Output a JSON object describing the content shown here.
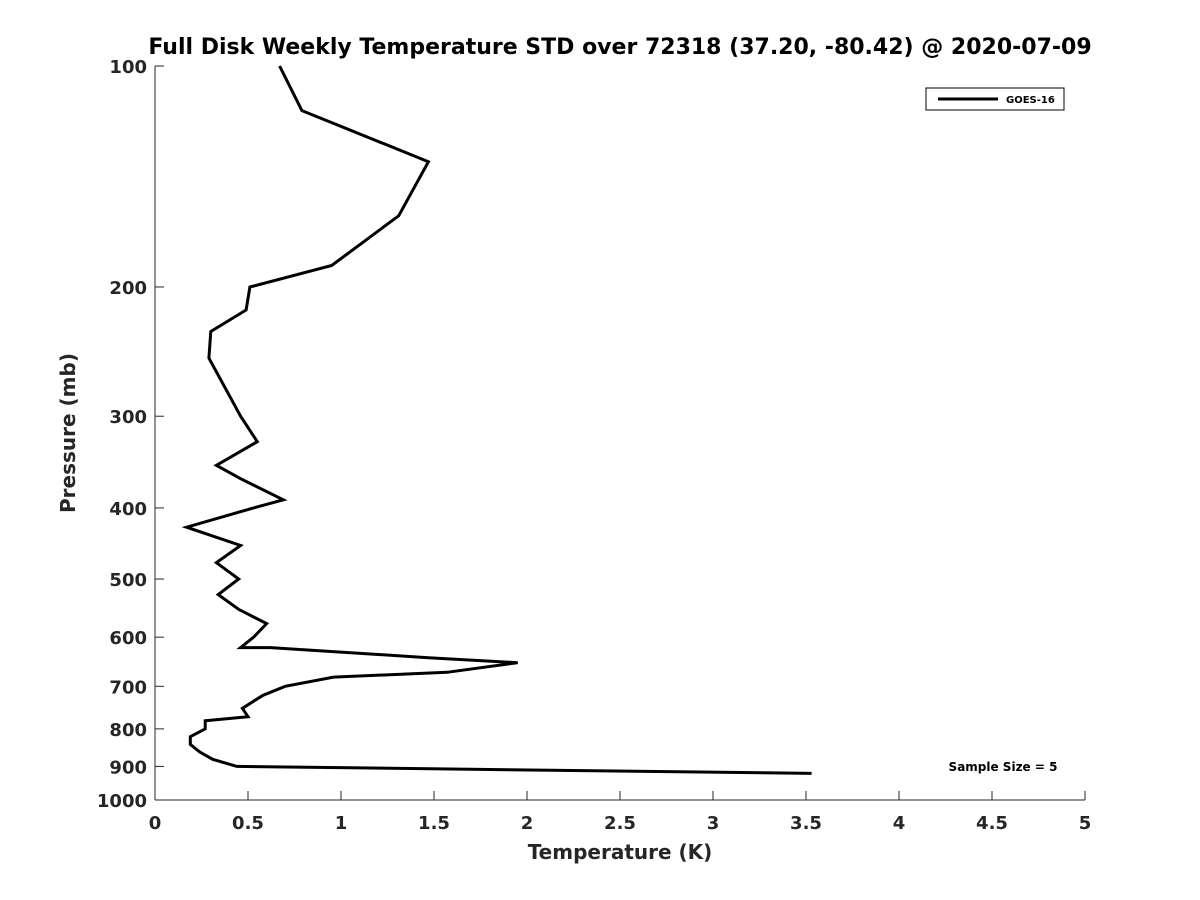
{
  "chart_data": {
    "type": "line",
    "title": "Full Disk Weekly Temperature STD over 72318 (37.20, -80.42) @ 2020-07-09",
    "xlabel": "Temperature (K)",
    "ylabel": "Pressure (mb)",
    "xlim": [
      0,
      5
    ],
    "ylim": [
      100,
      1000
    ],
    "y_scale": "log",
    "y_reversed": true,
    "grid": false,
    "legend_position": "top-right",
    "xticks": [
      0,
      0.5,
      1,
      1.5,
      2,
      2.5,
      3,
      3.5,
      4,
      4.5,
      5
    ],
    "xtick_labels": [
      "0",
      "0.5",
      "1",
      "1.5",
      "2",
      "2.5",
      "3",
      "3.5",
      "4",
      "4.5",
      "5"
    ],
    "yticks": [
      100,
      200,
      300,
      400,
      500,
      600,
      700,
      800,
      900,
      1000
    ],
    "ytick_labels": [
      "100",
      "200",
      "300",
      "400",
      "500",
      "600",
      "700",
      "800",
      "900",
      "1000"
    ],
    "series": [
      {
        "name": "GOES-16",
        "color": "#000000",
        "points": [
          [
            0.67,
            100
          ],
          [
            0.79,
            115
          ],
          [
            1.47,
            135
          ],
          [
            1.31,
            160
          ],
          [
            0.95,
            187
          ],
          [
            0.51,
            200
          ],
          [
            0.49,
            215
          ],
          [
            0.3,
            230
          ],
          [
            0.29,
            250
          ],
          [
            0.46,
            300
          ],
          [
            0.55,
            325
          ],
          [
            0.33,
            350
          ],
          [
            0.46,
            365
          ],
          [
            0.69,
            390
          ],
          [
            0.53,
            400
          ],
          [
            0.17,
            425
          ],
          [
            0.46,
            450
          ],
          [
            0.33,
            475
          ],
          [
            0.45,
            500
          ],
          [
            0.34,
            525
          ],
          [
            0.45,
            550
          ],
          [
            0.6,
            575
          ],
          [
            0.53,
            600
          ],
          [
            0.46,
            620
          ],
          [
            0.62,
            620
          ],
          [
            1.47,
            640
          ],
          [
            1.95,
            650
          ],
          [
            1.57,
            670
          ],
          [
            0.96,
            680
          ],
          [
            0.7,
            700
          ],
          [
            0.58,
            720
          ],
          [
            0.47,
            750
          ],
          [
            0.5,
            770
          ],
          [
            0.27,
            780
          ],
          [
            0.27,
            800
          ],
          [
            0.19,
            820
          ],
          [
            0.19,
            840
          ],
          [
            0.24,
            860
          ],
          [
            0.31,
            880
          ],
          [
            0.44,
            900
          ],
          [
            3.53,
            920
          ]
        ]
      }
    ],
    "annotation": "Sample Size = 5"
  }
}
